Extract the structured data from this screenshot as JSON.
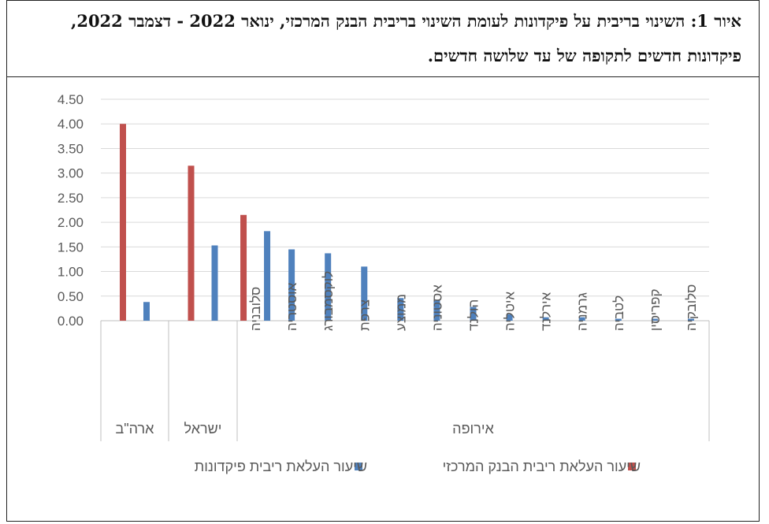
{
  "figure": {
    "title": "איור 1: השינוי בריבית על פיקדונות לעומת השינוי בריבית הבנק המרכזי, ינואר 2022 - דצמבר 2022, פיקדונות חדשים לתקופה של עד שלושה חדשים."
  },
  "chart_data": {
    "type": "bar",
    "title": "",
    "xlabel": "",
    "ylabel": "",
    "ylim": [
      0,
      4.5
    ],
    "yticks": [
      "4.50",
      "4.00",
      "3.50",
      "3.00",
      "2.50",
      "2.00",
      "1.50",
      "1.00",
      "0.50",
      "0.00"
    ],
    "grid": true,
    "legend_position": "bottom",
    "groups": [
      {
        "label": "ארה\"ב",
        "categories": [
          ""
        ]
      },
      {
        "label": "ישראל",
        "categories": [
          ""
        ]
      },
      {
        "label": "אירופה",
        "categories": [
          "סלובניה",
          "אוסטריה",
          "לוקסמבורג",
          "צרפת",
          "ממוצע",
          "אסטוניה",
          "הולנד",
          "איטליה",
          "אירלנד",
          "גרמניה",
          "לטביה",
          "קפריסין",
          "סלובקיה"
        ]
      }
    ],
    "categories": [
      "",
      "",
      "סלובניה",
      "אוסטריה",
      "לוקסמבורג",
      "צרפת",
      "ממוצע",
      "אסטוניה",
      "הולנד",
      "איטליה",
      "אירלנד",
      "גרמניה",
      "לטביה",
      "קפריסין",
      "סלובקיה"
    ],
    "series": [
      {
        "name": "שיעור העלאת ריבית הבנק המרכזי",
        "color": "#c0504d",
        "values": [
          4.0,
          3.15,
          2.15,
          null,
          null,
          null,
          null,
          null,
          null,
          null,
          null,
          null,
          null,
          null,
          null
        ]
      },
      {
        "name": "שיעור העלאת ריבית פיקדונות",
        "color": "#4f81bd",
        "values": [
          0.38,
          1.53,
          1.82,
          1.45,
          1.37,
          1.1,
          0.46,
          0.41,
          0.28,
          0.13,
          0.07,
          0.07,
          0.04,
          0.04,
          0.04
        ]
      }
    ]
  }
}
